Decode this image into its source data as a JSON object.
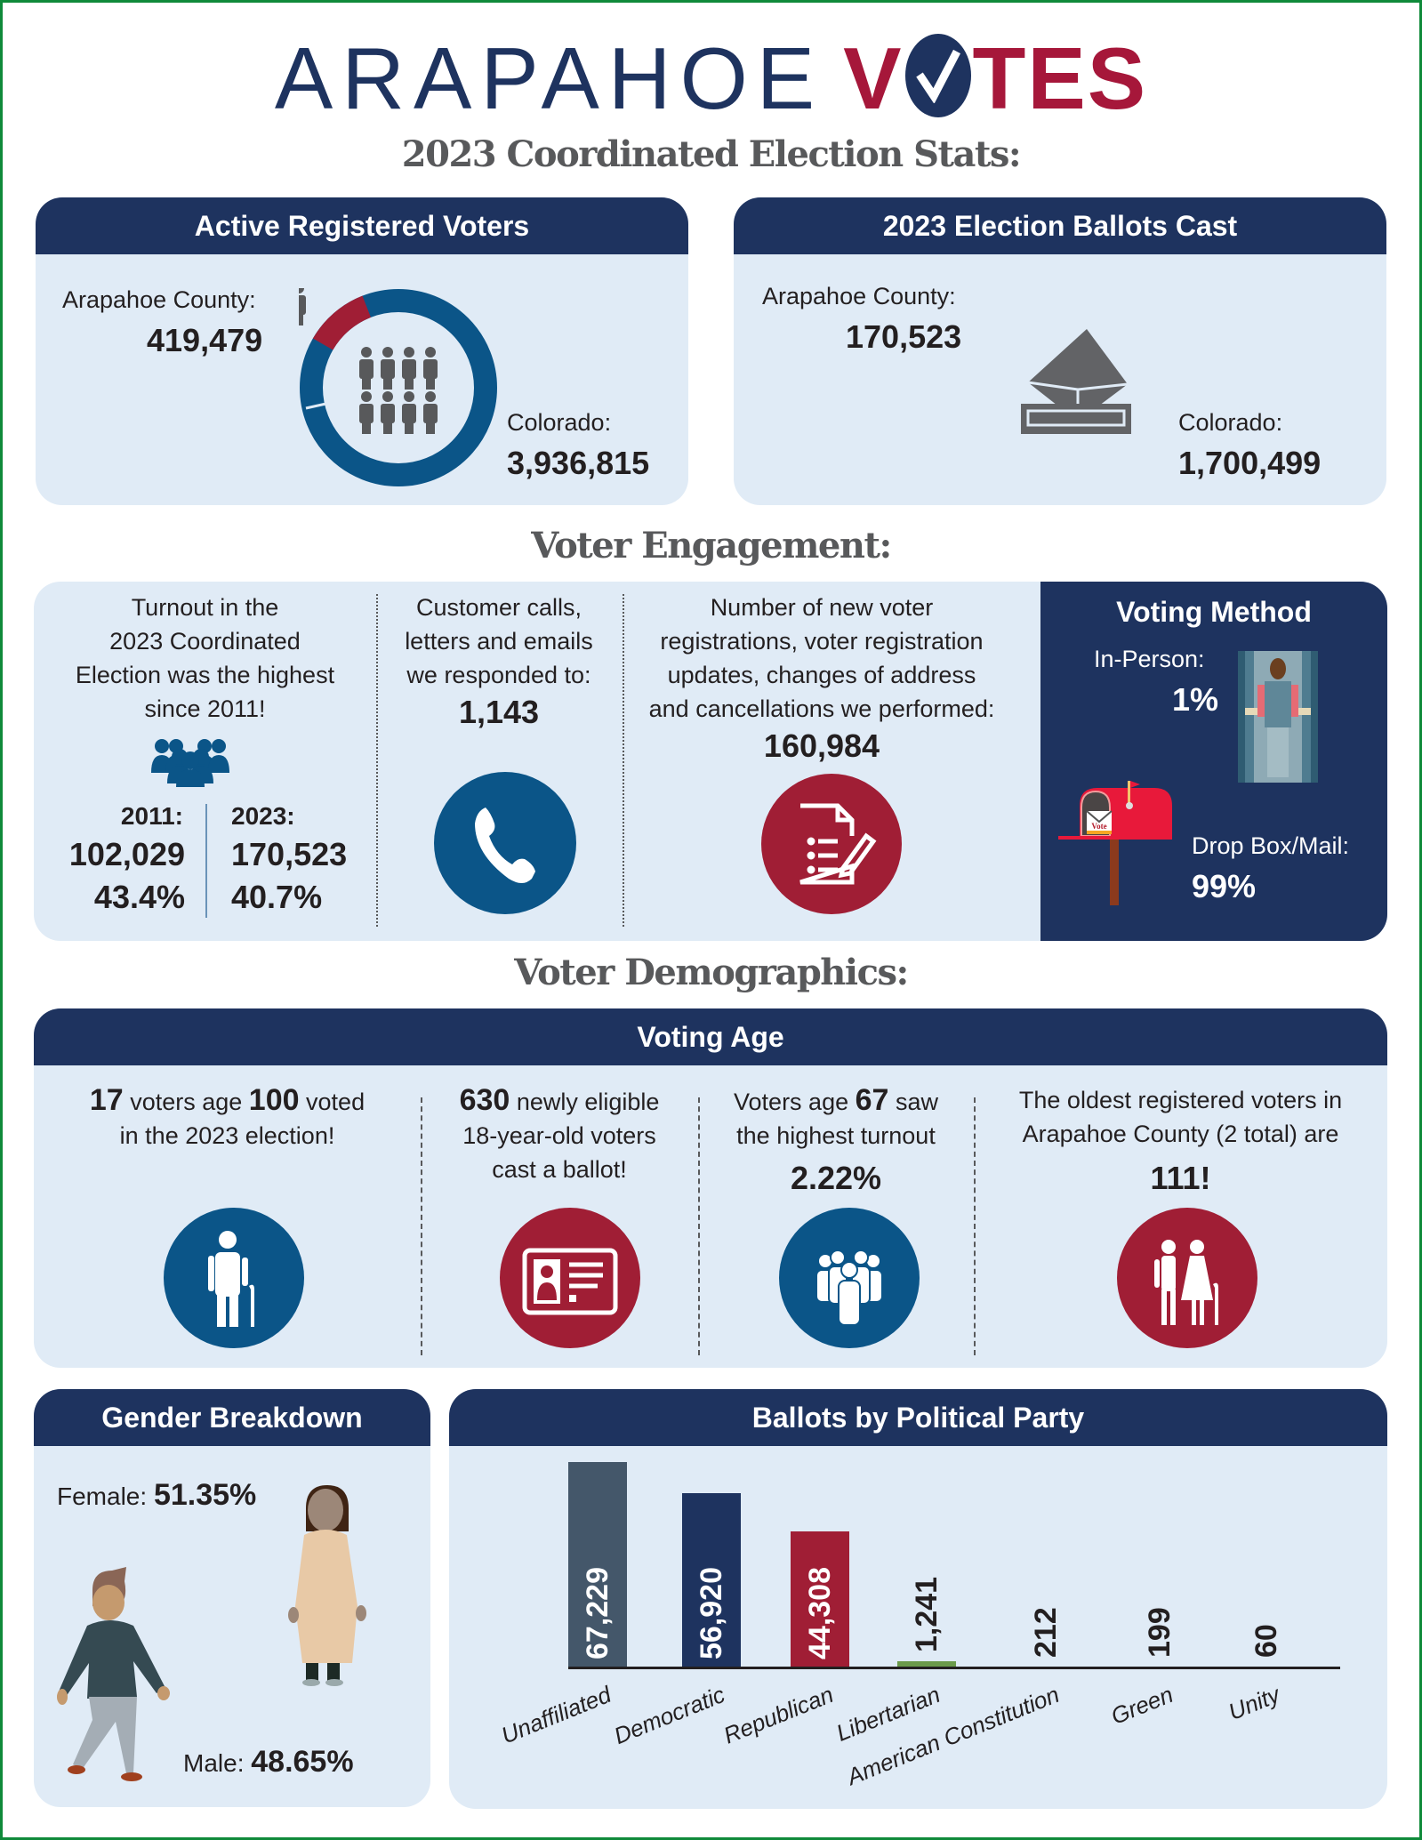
{
  "header": {
    "logo_part1": "ARAPAHOE",
    "logo_part2_v": "V",
    "logo_part2_rest": "TES",
    "subtitle": "2023 Coordinated Election Stats:"
  },
  "colors": {
    "navy": "#1e335f",
    "crimson": "#a6173a",
    "blue": "#0b5588",
    "red": "#a01e35",
    "panel": "#e0ebf6",
    "frame": "#0f8a3a"
  },
  "active_registered": {
    "title": "Active Registered Voters",
    "county_label": "Arapahoe County:",
    "county_value": "419,479",
    "state_label": "Colorado:",
    "state_value": "3,936,815"
  },
  "ballots_cast": {
    "title": "2023 Election Ballots Cast",
    "county_label": "Arapahoe County:",
    "county_value": "170,523",
    "state_label": "Colorado:",
    "state_value": "1,700,499"
  },
  "engagement": {
    "title": "Voter Engagement:",
    "turnout_text": [
      "Turnout in the",
      "2023 Coordinated",
      "Election was the highest",
      "since 2011!"
    ],
    "y2011_label": "2011:",
    "y2011_count": "102,029",
    "y2011_pct": "43.4%",
    "y2023_label": "2023:",
    "y2023_count": "170,523",
    "y2023_pct": "40.7%",
    "calls_text": [
      "Customer calls,",
      "letters and emails",
      "we responded to:"
    ],
    "calls_value": "1,143",
    "reg_text": [
      "Number of new voter",
      "registrations, voter registration",
      "updates, changes of address",
      "and cancellations we performed:"
    ],
    "reg_value": "160,984"
  },
  "voting_method": {
    "title": "Voting Method",
    "inperson_label": "In-Person:",
    "inperson_value": "1%",
    "mail_label": "Drop Box/Mail:",
    "mail_value": "99%",
    "mailbox_text": "Vote"
  },
  "demographics": {
    "title": "Voter Demographics:",
    "voting_age_title": "Voting Age",
    "c1": {
      "n1": "17",
      "t1": " voters age ",
      "n2": "100",
      "t2": " voted",
      "line2": "in the 2023 election!"
    },
    "c2": {
      "n1": "630",
      "t1": " newly eligible",
      "line2": "18-year-old voters",
      "line3": "cast a ballot!"
    },
    "c3": {
      "t0": "Voters age ",
      "n1": "67",
      "t1": " saw",
      "line2": "the highest turnout",
      "value": "2.22%"
    },
    "c4": {
      "line1": "The oldest registered voters in",
      "line2": "Arapahoe County (2 total) are",
      "value": "111!"
    }
  },
  "gender": {
    "title": "Gender Breakdown",
    "female_label": "Female:",
    "female_value": "51.35%",
    "male_label": "Male:",
    "male_value": "48.65%"
  },
  "party": {
    "title": "Ballots by Political Party"
  },
  "chart_data": {
    "type": "bar",
    "title": "Ballots by Political Party",
    "categories": [
      "Unaffiliated",
      "Democratic",
      "Republican",
      "Libertarian",
      "American Constitution",
      "Green",
      "Unity"
    ],
    "values": [
      67229,
      56920,
      44308,
      1241,
      212,
      199,
      60
    ],
    "value_labels": [
      "67,229",
      "56,920",
      "44,308",
      "1,241",
      "212",
      "199",
      "60"
    ],
    "colors": [
      "#44576a",
      "#1e335f",
      "#a01e35",
      "#6b9a4a",
      "#e0ebf6",
      "#e0ebf6",
      "#e0ebf6"
    ],
    "xlabel": "",
    "ylabel": "",
    "grid": false,
    "legend": "none"
  }
}
